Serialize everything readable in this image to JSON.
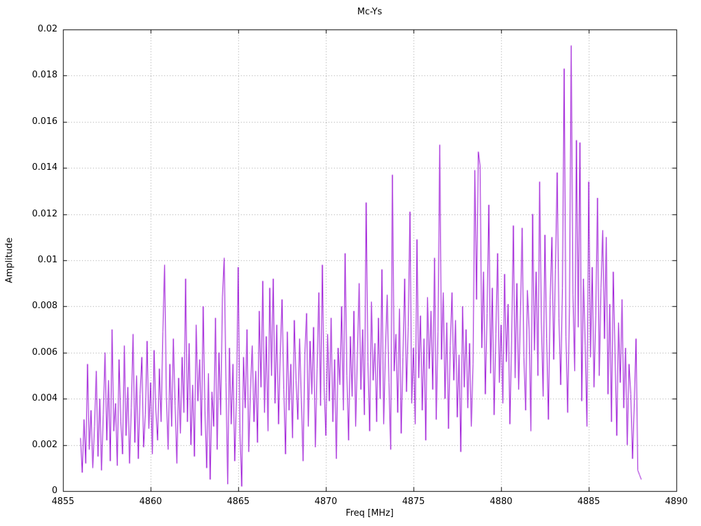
{
  "chart_data": {
    "type": "line",
    "title": "Mc-Ys",
    "xlabel": "Freq [MHz]",
    "ylabel": "Amplitude",
    "xlim": [
      4855,
      4890
    ],
    "ylim": [
      0,
      0.02
    ],
    "grid": true,
    "legend": "none",
    "line_color": "#9400d3",
    "grid_color": "#9a9a9a",
    "x_ticks": [
      4855,
      4860,
      4865,
      4870,
      4875,
      4880,
      4885,
      4890
    ],
    "x_tick_labels": [
      "4855",
      "4860",
      "4865",
      "4870",
      "4875",
      "4880",
      "4885",
      "4890"
    ],
    "y_ticks": [
      0,
      0.002,
      0.004,
      0.006,
      0.008,
      0.01,
      0.012,
      0.014,
      0.016,
      0.018,
      0.02
    ],
    "y_tick_labels": [
      "0",
      "0.002",
      "0.004",
      "0.006",
      "0.008",
      "0.01",
      "0.012",
      "0.014",
      "0.016",
      "0.018",
      "0.02"
    ],
    "x_start": 4856.0,
    "x_step": 0.1,
    "y_scale": 0.0001,
    "y_values": [
      23,
      8,
      31,
      12,
      55,
      18,
      35,
      10,
      28,
      52,
      15,
      40,
      9,
      33,
      60,
      22,
      48,
      13,
      70,
      26,
      38,
      11,
      57,
      30,
      16,
      63,
      24,
      45,
      12,
      36,
      68,
      21,
      50,
      14,
      42,
      58,
      19,
      33,
      65,
      27,
      47,
      16,
      61,
      35,
      22,
      53,
      30,
      69,
      98,
      41,
      18,
      55,
      28,
      66,
      37,
      12,
      49,
      25,
      58,
      34,
      92,
      30,
      64,
      20,
      46,
      15,
      72,
      39,
      57,
      24,
      80,
      35,
      10,
      51,
      5,
      43,
      28,
      75,
      18,
      60,
      33,
      84,
      101,
      47,
      3,
      62,
      29,
      55,
      13,
      40,
      97,
      25,
      2,
      58,
      36,
      70,
      17,
      44,
      63,
      30,
      52,
      21,
      78,
      45,
      91,
      34,
      67,
      26,
      88,
      50,
      92,
      38,
      72,
      29,
      60,
      83,
      44,
      16,
      69,
      35,
      55,
      23,
      74,
      48,
      31,
      66,
      40,
      13,
      59,
      77,
      28,
      65,
      42,
      71,
      19,
      53,
      86,
      37,
      98,
      45,
      24,
      68,
      39,
      75,
      30,
      57,
      14,
      62,
      46,
      80,
      35,
      103,
      50,
      22,
      67,
      41,
      78,
      28,
      59,
      90,
      44,
      70,
      33,
      125,
      56,
      26,
      82,
      48,
      64,
      30,
      75,
      40,
      96,
      29,
      61,
      85,
      47,
      18,
      137,
      52,
      68,
      34,
      79,
      25,
      58,
      92,
      43,
      71,
      121,
      38,
      62,
      29,
      109,
      49,
      76,
      35,
      66,
      22,
      84,
      53,
      78,
      44,
      101,
      31,
      69,
      150,
      57,
      86,
      40,
      73,
      27,
      63,
      86,
      48,
      74,
      32,
      59,
      17,
      80,
      45,
      70,
      36,
      64,
      28,
      55,
      139,
      83,
      147,
      141,
      62,
      95,
      42,
      77,
      124,
      51,
      88,
      33,
      68,
      103,
      47,
      72,
      38,
      94,
      56,
      81,
      29,
      65,
      115,
      49,
      90,
      44,
      76,
      114,
      58,
      35,
      87,
      70,
      26,
      120,
      61,
      95,
      50,
      134,
      73,
      41,
      111,
      66,
      31,
      83,
      110,
      57,
      96,
      138,
      75,
      46,
      88,
      183,
      67,
      34,
      79,
      193,
      85,
      52,
      152,
      71,
      151,
      39,
      92,
      63,
      28,
      134,
      58,
      97,
      45,
      76,
      127,
      50,
      88,
      113,
      66,
      110,
      42,
      81,
      30,
      95,
      60,
      24,
      73,
      47,
      83,
      36,
      62,
      20,
      55,
      42,
      14,
      38,
      66,
      9,
      7,
      5
    ]
  }
}
